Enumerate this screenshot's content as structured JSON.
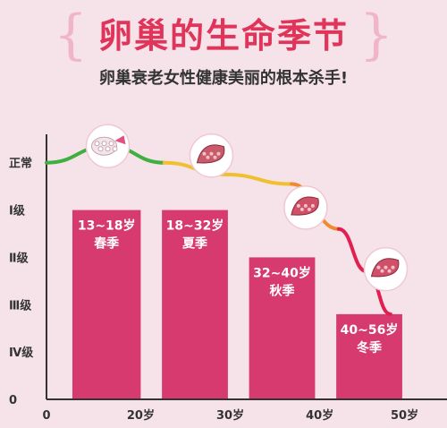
{
  "header": {
    "title": "卵巢的生命季节",
    "subtitle": "卵巢衰老女性健康美丽的根本杀手!",
    "brace_left": "{",
    "brace_right": "}"
  },
  "chart_data": {
    "type": "bar",
    "categories": [
      "13~18岁 春季",
      "18~32岁 夏季",
      "32~40岁 秋季",
      "40~56岁 冬季"
    ],
    "bars": [
      {
        "age": "13~18岁",
        "season": "春季",
        "x_start": 0.5,
        "x_end": 15,
        "level": 4
      },
      {
        "age": "18~32岁",
        "season": "夏季",
        "x_start": 19.5,
        "x_end": 33.5,
        "level": 4
      },
      {
        "age": "32~40岁",
        "season": "秋季",
        "x_start": 38,
        "x_end": 52,
        "level": 3
      },
      {
        "age": "40~56岁",
        "season": "冬季",
        "x_start": 56.5,
        "x_end": 70.5,
        "level": 1.8
      }
    ],
    "y_ticks": [
      {
        "label": "正常",
        "level": 5
      },
      {
        "label": "Ⅰ级",
        "level": 4
      },
      {
        "label": "Ⅱ级",
        "level": 3
      },
      {
        "label": "Ⅲ级",
        "level": 2
      },
      {
        "label": "Ⅳ级",
        "level": 1
      },
      {
        "label": "0",
        "level": 0
      }
    ],
    "x_ticks": [
      {
        "label": "0",
        "value": -5
      },
      {
        "label": "20岁",
        "value": 15
      },
      {
        "label": "30岁",
        "value": 34
      },
      {
        "label": "40岁",
        "value": 53
      },
      {
        "label": "50岁",
        "value": 71
      }
    ],
    "curve": [
      {
        "x": -5,
        "y": 5.0
      },
      {
        "x": 8,
        "y": 5.35
      },
      {
        "x": 20,
        "y": 5.0
      },
      {
        "x": 33,
        "y": 4.75
      },
      {
        "x": 47,
        "y": 4.55
      },
      {
        "x": 57,
        "y": 3.6
      },
      {
        "x": 63,
        "y": 2.7
      },
      {
        "x": 68,
        "y": 1.8
      }
    ],
    "xlim": [
      -5,
      80
    ],
    "ylim": [
      0,
      5.6
    ],
    "colors": {
      "bar": "#d63a6e",
      "curve_green": "#3faf3f",
      "curve_yellow": "#f0c030",
      "curve_orange": "#f08a30",
      "curve_red": "#e02050",
      "axis": "#333333"
    }
  },
  "illustrations": [
    {
      "name": "healthy-ovary-illustration",
      "x": 8,
      "y": 5.35
    },
    {
      "name": "summer-ovary-illustration",
      "x": 30,
      "y": 5.15
    },
    {
      "name": "autumn-ovary-illustration",
      "x": 50,
      "y": 4.05
    },
    {
      "name": "winter-ovary-illustration",
      "x": 67,
      "y": 2.75
    }
  ]
}
